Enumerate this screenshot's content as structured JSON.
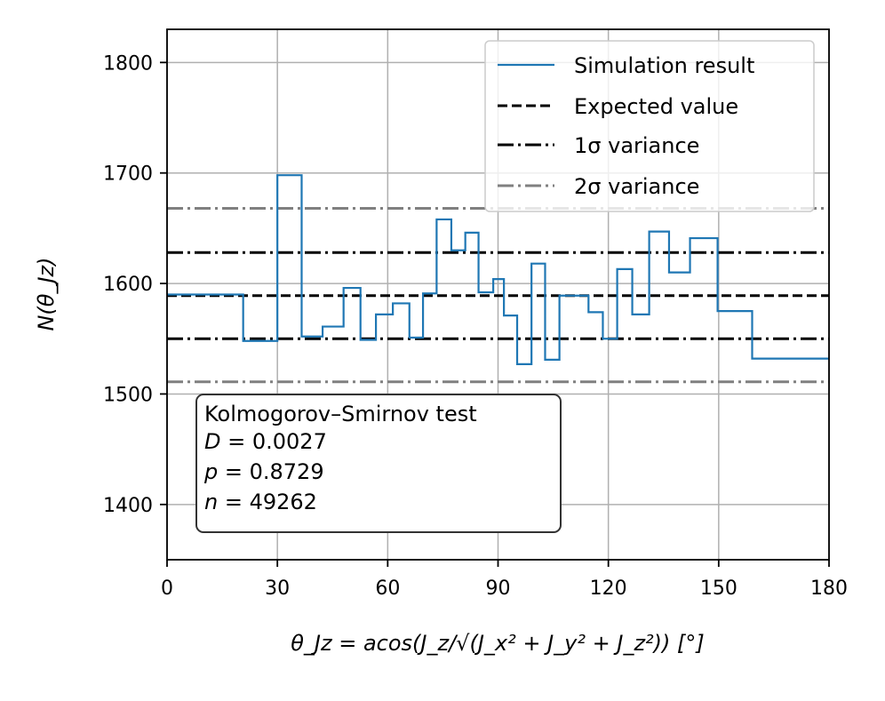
{
  "chart_data": {
    "type": "line",
    "step": "post",
    "xlabel": "θ_Jz = acos(J_z/√(J_x² + J_y² + J_z²)) [°]",
    "ylabel": "N(θ_Jz)",
    "xlim": [
      0,
      180
    ],
    "ylim": [
      1350,
      1830
    ],
    "xticks": [
      0,
      30,
      60,
      90,
      120,
      150,
      180
    ],
    "yticks": [
      1400,
      1500,
      1600,
      1700,
      1800
    ],
    "grid": true,
    "legend_position": "top-right",
    "series": [
      {
        "name": "Simulation result",
        "style": "solid",
        "color": "#1f77b4",
        "x": [
          0,
          20.7,
          30,
          36.6,
          42.3,
          48,
          52.6,
          56.8,
          61.4,
          65.9,
          69.6,
          73.3,
          77.3,
          81.1,
          84.7,
          88.7,
          91.6,
          95.2,
          99.1,
          102.8,
          106.7,
          110.8,
          114.6,
          118.5,
          122.4,
          126.5,
          131.1,
          136.5,
          142.2,
          149.7,
          159.1,
          180
        ],
        "y": [
          1590,
          1548,
          1698,
          1552,
          1561,
          1596,
          1549,
          1572,
          1582,
          1551,
          1591,
          1658,
          1630,
          1646,
          1592,
          1604,
          1571,
          1527,
          1618,
          1531,
          1589,
          1589,
          1574,
          1550,
          1613,
          1572,
          1647,
          1610,
          1641,
          1575,
          1532,
          1532
        ]
      },
      {
        "name": "Expected value",
        "style": "dashed",
        "color": "#000000",
        "y": 1589
      },
      {
        "name": "1σ variance",
        "style": "dashdot",
        "color": "#000000",
        "y": [
          1550,
          1628
        ]
      },
      {
        "name": "2σ variance",
        "style": "dashdot",
        "color": "#808080",
        "y": [
          1511,
          1668
        ]
      }
    ],
    "legend": [
      "Simulation result",
      "Expected value",
      "1σ variance",
      "2σ variance"
    ],
    "annotation": {
      "title": "Kolmogorov–Smirnov test",
      "lines": [
        {
          "var": "D",
          "value": "0.0027"
        },
        {
          "var": "p",
          "value": "0.8729"
        },
        {
          "var": "n",
          "value": "49262"
        }
      ]
    }
  }
}
